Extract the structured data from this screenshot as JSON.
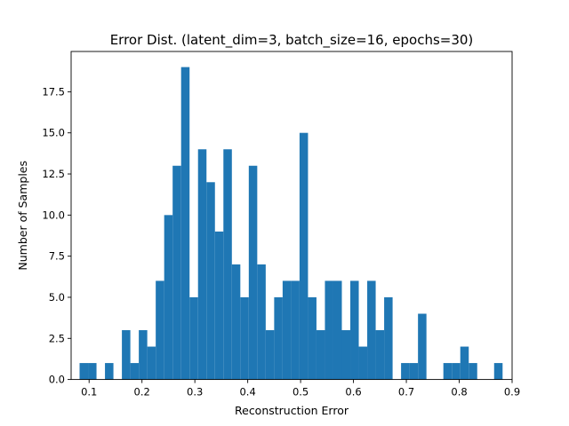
{
  "chart_data": {
    "type": "bar",
    "title": "Error Dist. (latent_dim=3, batch_size=16, epochs=30)",
    "xlabel": "Reconstruction Error",
    "ylabel": "Number of Samples",
    "xlim": [
      0.066,
      0.9
    ],
    "ylim": [
      0,
      19.95
    ],
    "xticks": [
      "0.1",
      "0.2",
      "0.3",
      "0.4",
      "0.5",
      "0.6",
      "0.7",
      "0.8",
      "0.9"
    ],
    "yticks": [
      "0.0",
      "2.5",
      "5.0",
      "7.5",
      "10.0",
      "12.5",
      "15.0",
      "17.5"
    ],
    "bar_color": "#1f77b4",
    "bin_width": 0.016,
    "bins_start": [
      0.082,
      0.098,
      0.114,
      0.13,
      0.146,
      0.162,
      0.178,
      0.194,
      0.21,
      0.226,
      0.242,
      0.258,
      0.274,
      0.29,
      0.306,
      0.322,
      0.338,
      0.354,
      0.37,
      0.386,
      0.402,
      0.418,
      0.434,
      0.45,
      0.466,
      0.482,
      0.498,
      0.514,
      0.53,
      0.546,
      0.562,
      0.578,
      0.594,
      0.61,
      0.626,
      0.642,
      0.658,
      0.674,
      0.69,
      0.706,
      0.722,
      0.738,
      0.754,
      0.77,
      0.786,
      0.802,
      0.818,
      0.834,
      0.85,
      0.866
    ],
    "counts": [
      1,
      1,
      0,
      1,
      0,
      3,
      1,
      3,
      2,
      6,
      10,
      13,
      19,
      5,
      14,
      12,
      9,
      14,
      7,
      5,
      13,
      7,
      3,
      5,
      6,
      6,
      15,
      5,
      3,
      6,
      6,
      3,
      6,
      2,
      6,
      3,
      5,
      0,
      1,
      1,
      4,
      0,
      0,
      1,
      1,
      2,
      1,
      0,
      0,
      1
    ]
  }
}
